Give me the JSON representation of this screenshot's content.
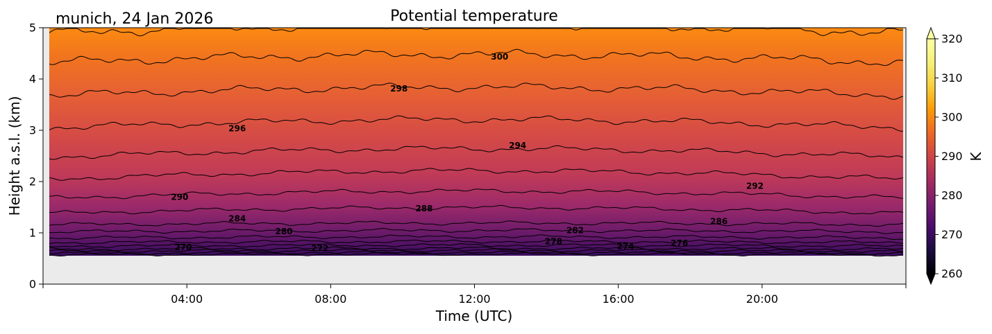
{
  "chart_data": {
    "type": "heatmap",
    "title": "Potential temperature",
    "subtitle": "munich, 24 Jan 2026",
    "xlabel": "Time (UTC)",
    "ylabel": "Height a.s.l. (km)",
    "xlim": [
      "00:00",
      "24:00"
    ],
    "ylim": [
      0,
      5
    ],
    "x_ticks": [
      "04:00",
      "08:00",
      "12:00",
      "16:00",
      "20:00"
    ],
    "y_ticks": [
      "0",
      "1",
      "2",
      "3",
      "4",
      "5"
    ],
    "data_bottom_km": 0.55,
    "colorbar": {
      "label": "K",
      "range": [
        260,
        320
      ],
      "ticks": [
        "260",
        "270",
        "280",
        "290",
        "300",
        "310",
        "320"
      ],
      "extend": "both",
      "colormap": "inferno"
    },
    "contour_interval_K": 2,
    "contour_levels": [
      {
        "value": 270,
        "height_km": 0.57
      },
      {
        "value": 272,
        "height_km": 0.6
      },
      {
        "value": 274,
        "height_km": 0.64
      },
      {
        "value": 276,
        "height_km": 0.68
      },
      {
        "value": 278,
        "height_km": 0.74
      },
      {
        "value": 280,
        "height_km": 0.81
      },
      {
        "value": 282,
        "height_km": 0.9
      },
      {
        "value": 284,
        "height_km": 1.02
      },
      {
        "value": 286,
        "height_km": 1.16
      },
      {
        "value": 288,
        "height_km": 1.38
      },
      {
        "value": 290,
        "height_km": 1.68
      },
      {
        "value": 292,
        "height_km": 2.05
      },
      {
        "value": 294,
        "height_km": 2.48
      },
      {
        "value": 296,
        "height_km": 3.05
      },
      {
        "value": 298,
        "height_km": 3.68
      },
      {
        "value": 300,
        "height_km": 4.32
      },
      {
        "value": 302,
        "height_km": 4.9
      }
    ],
    "contour_labels": [
      {
        "text": "270",
        "time_h": 3.9,
        "height_km": 0.66
      },
      {
        "text": "272",
        "time_h": 7.7,
        "height_km": 0.64
      },
      {
        "text": "274",
        "time_h": 16.2,
        "height_km": 0.68
      },
      {
        "text": "276",
        "time_h": 17.7,
        "height_km": 0.74
      },
      {
        "text": "278",
        "time_h": 14.2,
        "height_km": 0.78
      },
      {
        "text": "280",
        "time_h": 6.7,
        "height_km": 0.97
      },
      {
        "text": "282",
        "time_h": 14.8,
        "height_km": 0.99
      },
      {
        "text": "284",
        "time_h": 5.4,
        "height_km": 1.22
      },
      {
        "text": "286",
        "time_h": 18.8,
        "height_km": 1.17
      },
      {
        "text": "288",
        "time_h": 10.6,
        "height_km": 1.42
      },
      {
        "text": "290",
        "time_h": 3.8,
        "height_km": 1.64
      },
      {
        "text": "292",
        "time_h": 19.8,
        "height_km": 1.86
      },
      {
        "text": "294",
        "time_h": 13.2,
        "height_km": 2.65
      },
      {
        "text": "296",
        "time_h": 5.4,
        "height_km": 2.98
      },
      {
        "text": "298",
        "time_h": 9.9,
        "height_km": 3.76
      },
      {
        "text": "300",
        "time_h": 12.7,
        "height_km": 4.38
      }
    ]
  }
}
